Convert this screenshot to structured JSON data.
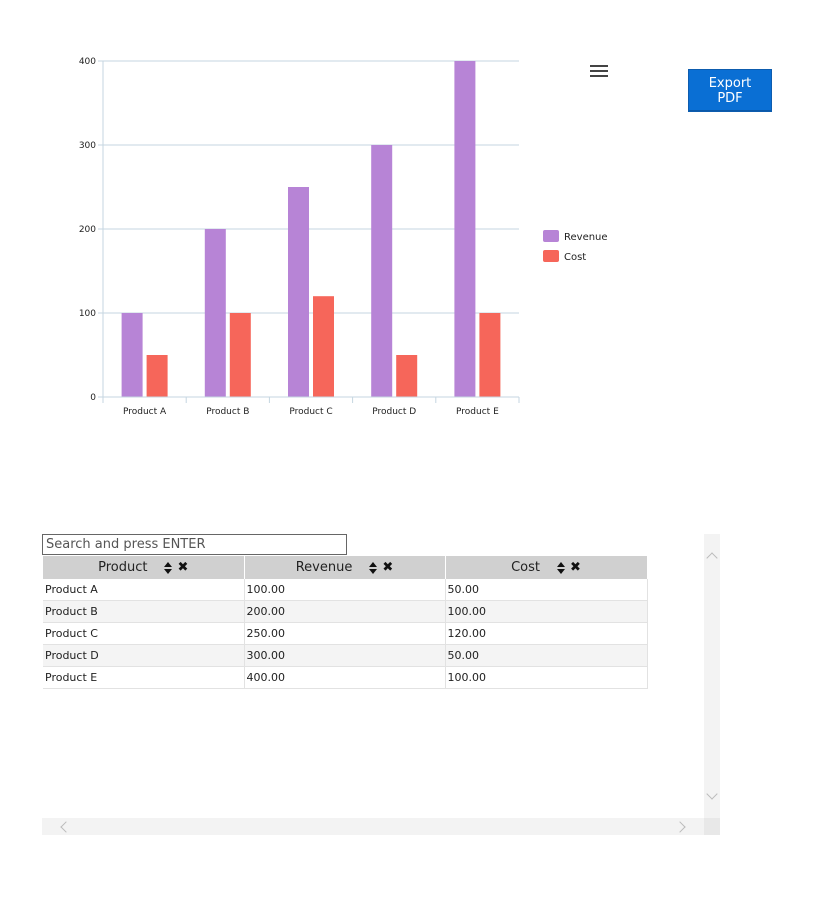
{
  "chart_data": {
    "type": "bar",
    "categories": [
      "Product A",
      "Product B",
      "Product C",
      "Product D",
      "Product E"
    ],
    "series": [
      {
        "name": "Revenue",
        "values": [
          100,
          200,
          250,
          300,
          400
        ],
        "color": "#b784d6"
      },
      {
        "name": "Cost",
        "values": [
          50,
          100,
          120,
          50,
          100
        ],
        "color": "#f6665a"
      }
    ],
    "ylim": [
      0,
      400
    ],
    "yticks": [
      0,
      100,
      200,
      300,
      400
    ],
    "grid": true,
    "legend_position": "right"
  },
  "toolbar": {
    "menu_icon": "hamburger-menu-icon",
    "export_label": "Export PDF",
    "export_color": "#0a6fd4"
  },
  "grid": {
    "search_placeholder": "Search and press ENTER",
    "columns": [
      "Product",
      "Revenue",
      "Cost"
    ],
    "rows": [
      [
        "Product A",
        "100.00",
        "50.00"
      ],
      [
        "Product B",
        "200.00",
        "100.00"
      ],
      [
        "Product C",
        "250.00",
        "120.00"
      ],
      [
        "Product D",
        "300.00",
        "50.00"
      ],
      [
        "Product E",
        "400.00",
        "100.00"
      ]
    ]
  }
}
